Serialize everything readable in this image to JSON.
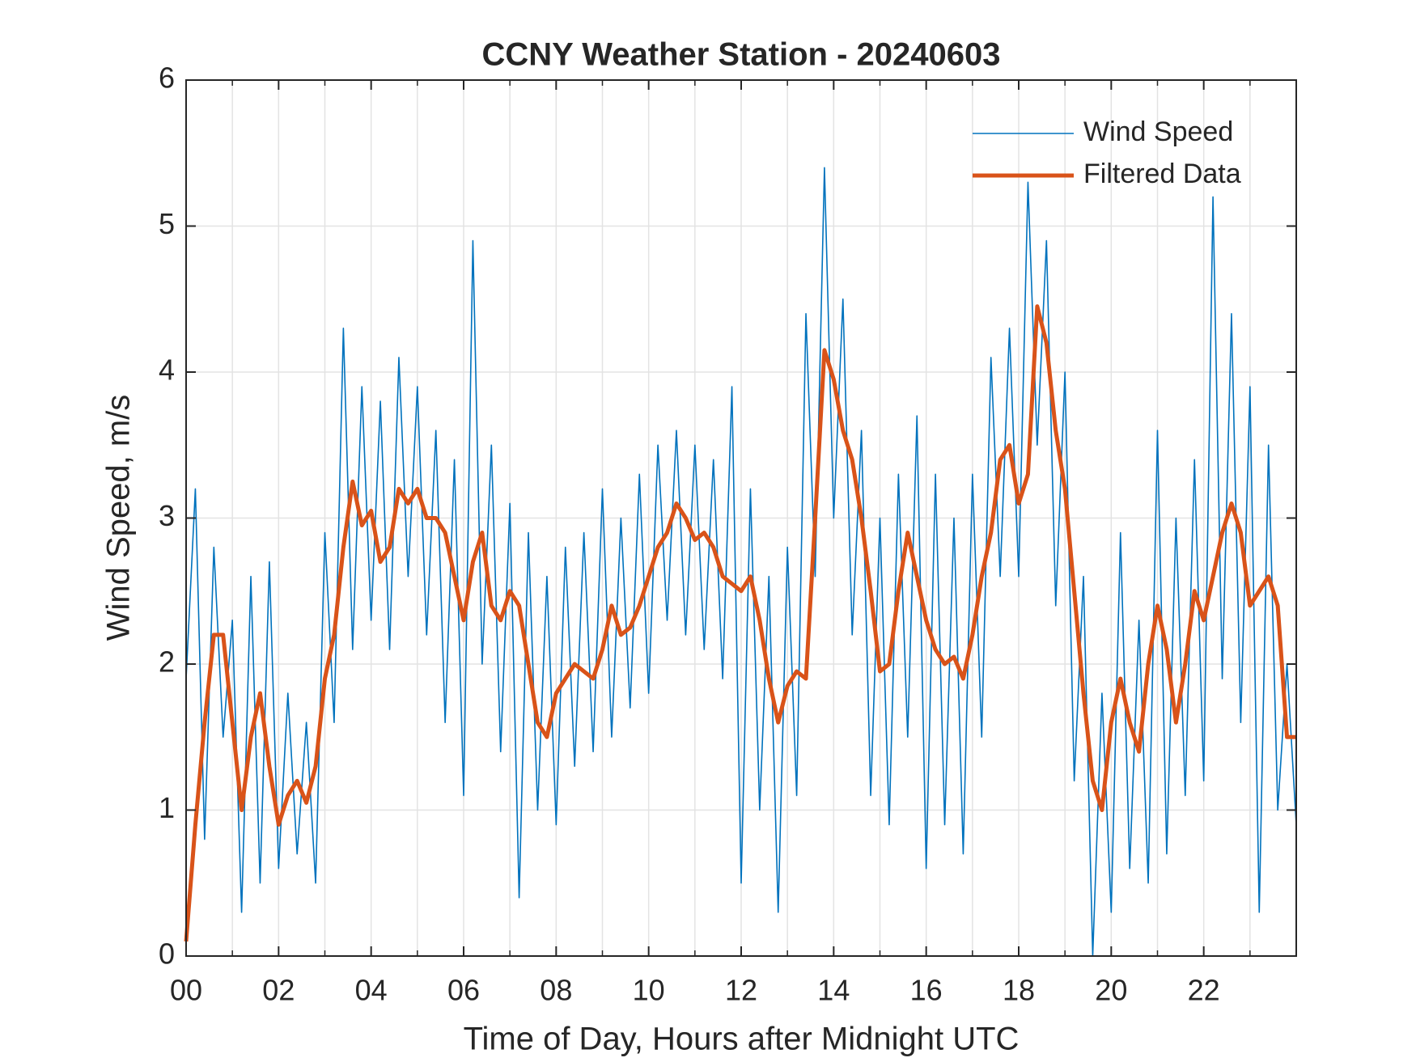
{
  "chart_data": {
    "type": "line",
    "title": "CCNY Weather Station - 20240603",
    "x_label": "Time of Day, Hours after Midnight UTC",
    "y_label": "Wind Speed, m/s",
    "x": [
      0,
      0.2,
      0.4,
      0.6,
      0.8,
      1,
      1.2,
      1.4,
      1.6,
      1.8,
      2,
      2.2,
      2.4,
      2.6,
      2.8,
      3,
      3.2,
      3.4,
      3.6,
      3.8,
      4,
      4.2,
      4.4,
      4.6,
      4.8,
      5,
      5.2,
      5.4,
      5.6,
      5.8,
      6,
      6.2,
      6.4,
      6.6,
      6.8,
      7,
      7.2,
      7.4,
      7.6,
      7.8,
      8,
      8.2,
      8.4,
      8.6,
      8.8,
      9,
      9.2,
      9.4,
      9.6,
      9.8,
      10,
      10.2,
      10.4,
      10.6,
      10.8,
      11,
      11.2,
      11.4,
      11.6,
      11.8,
      12,
      12.2,
      12.4,
      12.6,
      12.8,
      13,
      13.2,
      13.4,
      13.6,
      13.8,
      14,
      14.2,
      14.4,
      14.6,
      14.8,
      15,
      15.2,
      15.4,
      15.6,
      15.8,
      16,
      16.2,
      16.4,
      16.6,
      16.8,
      17,
      17.2,
      17.4,
      17.6,
      17.8,
      18,
      18.2,
      18.4,
      18.6,
      18.8,
      19,
      19.2,
      19.4,
      19.6,
      19.8,
      20,
      20.2,
      20.4,
      20.6,
      20.8,
      21,
      21.2,
      21.4,
      21.6,
      21.8,
      22,
      22.2,
      22.4,
      22.6,
      22.8,
      23,
      23.2,
      23.4,
      23.6,
      23.8,
      24
    ],
    "series": [
      {
        "name": "Wind Speed",
        "color": "#0072BD",
        "values": [
          1.9,
          3.2,
          0.8,
          2.8,
          1.5,
          2.3,
          0.3,
          2.6,
          0.5,
          2.7,
          0.6,
          1.8,
          0.7,
          1.6,
          0.5,
          2.9,
          1.6,
          4.3,
          2.1,
          3.9,
          2.3,
          3.8,
          2.1,
          4.1,
          2.6,
          3.9,
          2.2,
          3.6,
          1.6,
          3.4,
          1.1,
          4.9,
          2.0,
          3.5,
          1.4,
          3.1,
          0.4,
          2.9,
          1.0,
          2.6,
          0.9,
          2.8,
          1.3,
          2.9,
          1.4,
          3.2,
          1.5,
          3.0,
          1.7,
          3.3,
          1.8,
          3.5,
          2.3,
          3.6,
          2.2,
          3.5,
          2.1,
          3.4,
          1.9,
          3.9,
          0.5,
          3.2,
          1.0,
          2.6,
          0.3,
          2.8,
          1.1,
          4.4,
          2.6,
          5.4,
          3.0,
          4.5,
          2.2,
          3.6,
          1.1,
          3.0,
          0.9,
          3.3,
          1.5,
          3.7,
          0.6,
          3.3,
          0.9,
          3.0,
          0.7,
          3.3,
          1.5,
          4.1,
          2.6,
          4.3,
          2.6,
          5.3,
          3.5,
          4.9,
          2.4,
          4.0,
          1.2,
          2.6,
          0.0,
          1.8,
          0.3,
          2.9,
          0.6,
          2.3,
          0.5,
          3.6,
          0.7,
          3.0,
          1.1,
          3.4,
          1.2,
          5.2,
          1.9,
          4.4,
          1.6,
          3.9,
          0.3,
          3.5,
          1.0,
          2.0,
          0.9
        ]
      },
      {
        "name": "Filtered Data",
        "color": "#D95319",
        "values": [
          0.1,
          0.9,
          1.6,
          2.2,
          2.2,
          1.6,
          1.0,
          1.5,
          1.8,
          1.3,
          0.9,
          1.1,
          1.2,
          1.05,
          1.3,
          1.9,
          2.2,
          2.8,
          3.25,
          2.95,
          3.05,
          2.7,
          2.8,
          3.2,
          3.1,
          3.2,
          3.0,
          3.0,
          2.9,
          2.6,
          2.3,
          2.7,
          2.9,
          2.4,
          2.3,
          2.5,
          2.4,
          2.0,
          1.6,
          1.5,
          1.8,
          1.9,
          2.0,
          1.95,
          1.9,
          2.1,
          2.4,
          2.2,
          2.25,
          2.4,
          2.6,
          2.8,
          2.9,
          3.1,
          3.0,
          2.85,
          2.9,
          2.8,
          2.6,
          2.55,
          2.5,
          2.6,
          2.3,
          1.9,
          1.6,
          1.85,
          1.95,
          1.9,
          3.0,
          4.15,
          3.95,
          3.6,
          3.4,
          3.0,
          2.5,
          1.95,
          2.0,
          2.5,
          2.9,
          2.6,
          2.3,
          2.1,
          2.0,
          2.05,
          1.9,
          2.2,
          2.6,
          2.9,
          3.4,
          3.5,
          3.1,
          3.3,
          4.45,
          4.2,
          3.6,
          3.2,
          2.5,
          1.8,
          1.2,
          1.0,
          1.6,
          1.9,
          1.6,
          1.4,
          2.0,
          2.4,
          2.1,
          1.6,
          2.0,
          2.5,
          2.3,
          2.6,
          2.9,
          3.1,
          2.9,
          2.4,
          2.5,
          2.6,
          2.4,
          1.5,
          1.5
        ]
      }
    ],
    "xlim": [
      0,
      24
    ],
    "ylim": [
      0,
      6
    ],
    "xticks": [
      {
        "value": 0,
        "label": "00"
      },
      {
        "value": 2,
        "label": "02"
      },
      {
        "value": 4,
        "label": "04"
      },
      {
        "value": 6,
        "label": "06"
      },
      {
        "value": 8,
        "label": "08"
      },
      {
        "value": 10,
        "label": "10"
      },
      {
        "value": 12,
        "label": "12"
      },
      {
        "value": 14,
        "label": "14"
      },
      {
        "value": 16,
        "label": "16"
      },
      {
        "value": 18,
        "label": "18"
      },
      {
        "value": 20,
        "label": "20"
      },
      {
        "value": 22,
        "label": "22"
      }
    ],
    "xminorticks": [
      1,
      3,
      5,
      7,
      9,
      11,
      13,
      15,
      17,
      19,
      21,
      23
    ],
    "yticks": [
      0,
      1,
      2,
      3,
      4,
      5,
      6
    ],
    "grid": true,
    "legend": "northeast"
  }
}
